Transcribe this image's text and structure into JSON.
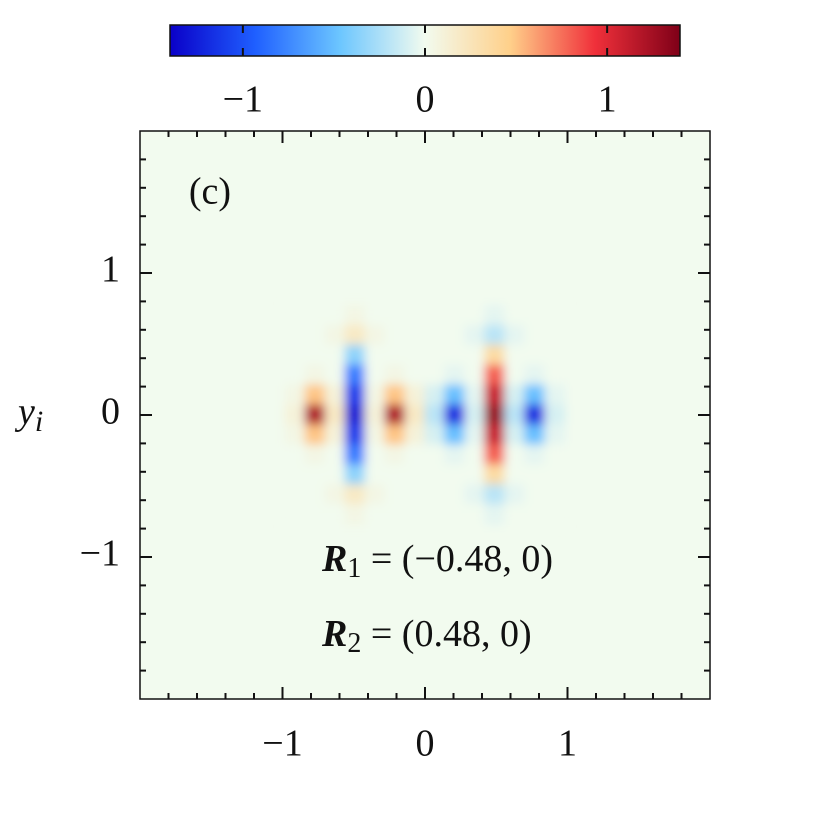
{
  "chart_data": {
    "type": "heatmap",
    "panel_label": "(c)",
    "ylabel": {
      "symbol": "y",
      "sub": "i"
    },
    "annotations": [
      {
        "symbol": "R",
        "sub": "1",
        "text": " = (−0.48, 0)"
      },
      {
        "symbol": "R",
        "sub": "2",
        "text": " = (0.48, 0)"
      }
    ],
    "xlim": [
      -2,
      2
    ],
    "ylim": [
      -2,
      2
    ],
    "xticks": [
      {
        "value": -1,
        "label": "−1"
      },
      0,
      1
    ],
    "yticks": [
      {
        "value": -1,
        "label": "−1"
      },
      0,
      1
    ],
    "xticks_minor": [
      -1.8,
      -1.6,
      -1.4,
      -1.2,
      -0.8,
      -0.6,
      -0.4,
      -0.2,
      0.2,
      0.4,
      0.6,
      0.8,
      1.2,
      1.4,
      1.6,
      1.8
    ],
    "yticks_minor": [
      -1.8,
      -1.6,
      -1.4,
      -1.2,
      -0.8,
      -0.6,
      -0.4,
      -0.2,
      0.2,
      0.4,
      0.6,
      0.8,
      1.2,
      1.4,
      1.6,
      1.8
    ],
    "x": [
      -0.91,
      -0.77,
      -0.63,
      -0.49,
      -0.35,
      -0.21,
      -0.07,
      0.07,
      0.21,
      0.35,
      0.49,
      0.63,
      0.77,
      0.91
    ],
    "y": [
      0.7,
      0.56,
      0.42,
      0.28,
      0.14,
      0,
      -0.14,
      -0.28,
      -0.42,
      -0.56,
      -0.7
    ],
    "values": [
      [
        0,
        0,
        0,
        0.05,
        0,
        0,
        0,
        0,
        0,
        0,
        -0.05,
        0,
        0,
        0
      ],
      [
        0,
        0,
        0.05,
        0.2,
        0.05,
        0,
        0,
        0,
        0,
        -0.05,
        -0.2,
        -0.05,
        0,
        0
      ],
      [
        0,
        0,
        0,
        -0.35,
        0,
        0,
        0,
        0,
        0,
        0,
        0.35,
        0,
        0,
        0
      ],
      [
        0,
        0.05,
        0,
        -0.8,
        0,
        0.05,
        0,
        0,
        -0.05,
        0,
        0.8,
        0,
        -0.05,
        0
      ],
      [
        0.05,
        0.5,
        0.1,
        -1.1,
        0.05,
        0.5,
        0.1,
        -0.1,
        -0.5,
        -0.05,
        1.1,
        -0.1,
        -0.5,
        -0.05
      ],
      [
        0.1,
        1.2,
        0.2,
        -1.3,
        0.1,
        1.2,
        0.2,
        -0.2,
        -1.2,
        -0.1,
        1.3,
        -0.2,
        -1.2,
        -0.1
      ],
      [
        0.05,
        0.5,
        0.1,
        -1.1,
        0.05,
        0.5,
        0.1,
        -0.1,
        -0.5,
        -0.05,
        1.1,
        -0.1,
        -0.5,
        -0.05
      ],
      [
        0,
        0.05,
        0,
        -0.8,
        0,
        0.05,
        0,
        0,
        -0.05,
        0,
        0.8,
        0,
        -0.05,
        0
      ],
      [
        0,
        0,
        0,
        -0.35,
        0,
        0,
        0,
        0,
        0,
        0,
        0.35,
        0,
        0,
        0
      ],
      [
        0,
        0,
        0.05,
        0.2,
        0.05,
        0,
        0,
        0,
        0,
        -0.05,
        -0.2,
        -0.05,
        0,
        0
      ],
      [
        0,
        0,
        0,
        0.05,
        0,
        0,
        0,
        0,
        0,
        0,
        -0.05,
        0,
        0,
        0
      ]
    ],
    "clim": [
      -1.4,
      1.4
    ],
    "cticks": [
      {
        "value": -1,
        "label": "−1"
      },
      0,
      1
    ],
    "colormap": [
      "#0a00c8",
      "#1f5fff",
      "#6cc6ff",
      "#f2fbef",
      "#ffd08a",
      "#f0303a",
      "#7f0018"
    ]
  }
}
